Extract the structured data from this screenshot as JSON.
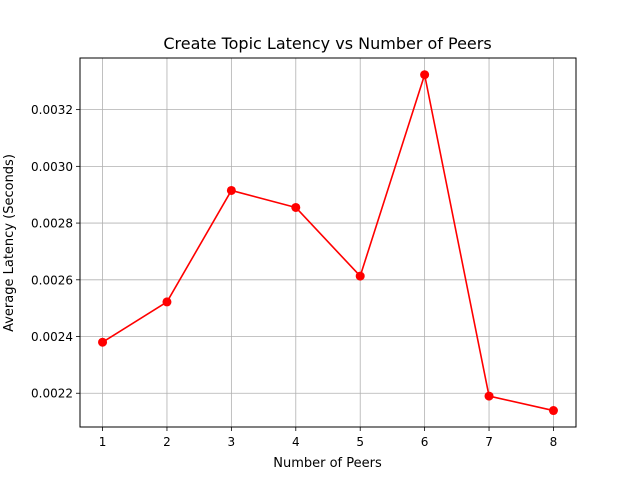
{
  "chart_data": {
    "type": "line",
    "title": "Create Topic Latency vs Number of Peers",
    "xlabel": "Number of Peers",
    "ylabel": "Average Latency (Seconds)",
    "x": [
      1,
      2,
      3,
      4,
      5,
      6,
      7,
      8
    ],
    "series": [
      {
        "values": [
          0.00238,
          0.002522,
          0.002915,
          0.002855,
          0.002613,
          0.003323,
          0.00219,
          0.002139
        ],
        "color": "#ff0000",
        "marker": "circle"
      }
    ],
    "xlim": [
      0.65,
      8.35
    ],
    "ylim": [
      0.002081,
      0.003382
    ],
    "x_ticks": [
      "1",
      "2",
      "3",
      "4",
      "5",
      "6",
      "7",
      "8"
    ],
    "y_ticks": [
      "0.0022",
      "0.0024",
      "0.0026",
      "0.0028",
      "0.0030",
      "0.0032"
    ],
    "grid": true
  }
}
